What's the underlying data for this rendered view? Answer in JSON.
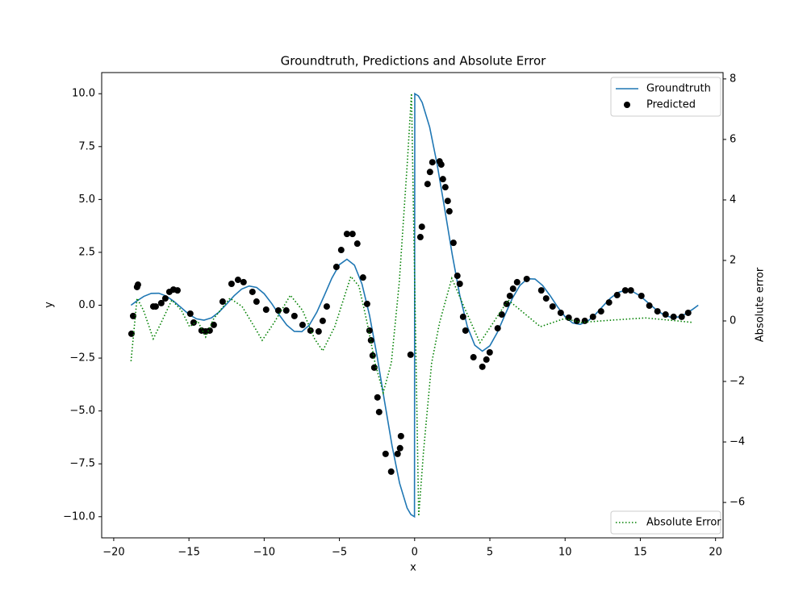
{
  "chart_data": {
    "type": "line",
    "title": "Groundtruth, Predictions and Absolute Error",
    "xlabel": "x",
    "ylabel": "y",
    "y2label": "Absolute error",
    "xlim": [
      -20.8,
      20.5
    ],
    "ylim": [
      -11,
      11
    ],
    "y2lim": [
      -7.17,
      8.21
    ],
    "xticks": [
      {
        "value": -20,
        "label": "−20"
      },
      {
        "value": -15,
        "label": "−15"
      },
      {
        "value": -10,
        "label": "−10"
      },
      {
        "value": -5,
        "label": "−5"
      },
      0,
      5,
      10,
      15,
      20
    ],
    "yticks": [
      {
        "value": -10,
        "label": "−10.0"
      },
      {
        "value": -7.5,
        "label": "−7.5"
      },
      {
        "value": -5,
        "label": "−5.0"
      },
      {
        "value": -2.5,
        "label": "−2.5"
      },
      {
        "value": 0,
        "label": "0.0"
      },
      2.5,
      {
        "value": 5,
        "label": "5.0"
      },
      7.5,
      {
        "value": 10,
        "label": "10.0"
      }
    ],
    "y2ticks": [
      {
        "value": -6,
        "label": "−6"
      },
      {
        "value": -4,
        "label": "−4"
      },
      {
        "value": -2,
        "label": "−2"
      },
      0,
      2,
      4,
      6,
      8
    ],
    "legend": "upper right",
    "y2_legend": "lower right",
    "series": [
      {
        "name": "Groundtruth",
        "type": "line",
        "color": "#1f77b4",
        "x": [
          -18.85,
          -18.5,
          -18,
          -17.5,
          -17,
          -16.5,
          -16,
          -15.5,
          -15,
          -14.5,
          -14,
          -13.5,
          -13,
          -12.5,
          -12,
          -11.5,
          -11,
          -10.5,
          -10,
          -9.5,
          -9,
          -8.5,
          -8,
          -7.5,
          -7,
          -6.5,
          -6,
          -5.5,
          -5,
          -4.5,
          -4,
          -3.5,
          -3,
          -2.5,
          -2,
          -1.5,
          -1,
          -0.5,
          -0.25,
          -0.01,
          0.01,
          0.25,
          0.5,
          1,
          1.5,
          2,
          2.5,
          3,
          3.5,
          4,
          4.5,
          5,
          5.5,
          6,
          6.5,
          7,
          7.5,
          8,
          8.5,
          9,
          9.5,
          10,
          10.5,
          11,
          11.5,
          12,
          12.5,
          13,
          13.5,
          14,
          14.5,
          15,
          15.5,
          16,
          16.5,
          17,
          17.5,
          18,
          18.5,
          18.85
        ],
        "values": [
          0,
          0.183,
          0.417,
          0.56,
          0.566,
          0.432,
          0.18,
          -0.125,
          -0.434,
          -0.645,
          -0.708,
          -0.595,
          -0.323,
          0.053,
          0.447,
          0.761,
          0.909,
          0.838,
          0.544,
          0.079,
          -0.458,
          -0.939,
          -1.237,
          -1.251,
          -0.939,
          -0.331,
          0.466,
          1.283,
          1.918,
          2.172,
          1.892,
          1.002,
          -0.47,
          -2.394,
          -4.546,
          -6.65,
          -8.415,
          -9.589,
          -9.896,
          -10,
          10,
          9.896,
          9.589,
          8.415,
          6.65,
          4.546,
          2.394,
          0.47,
          -1.002,
          -1.892,
          -2.172,
          -1.918,
          -1.283,
          -0.466,
          0.331,
          0.939,
          1.251,
          1.237,
          0.939,
          0.458,
          -0.079,
          -0.544,
          -0.838,
          -0.909,
          -0.761,
          -0.447,
          -0.053,
          0.323,
          0.595,
          0.708,
          0.645,
          0.434,
          0.125,
          -0.18,
          -0.432,
          -0.566,
          -0.56,
          -0.417,
          -0.183,
          0
        ]
      },
      {
        "name": "Predicted",
        "type": "scatter",
        "color": "#000000",
        "x": [
          -18.82,
          -18.71,
          -18.45,
          -18.39,
          -17.37,
          -17.21,
          -16.84,
          -16.57,
          -16.3,
          -16.03,
          -15.76,
          -14.91,
          -14.69,
          -14.16,
          -13.89,
          -13.62,
          -13.35,
          -12.76,
          -12.17,
          -11.74,
          -11.37,
          -10.78,
          -10.51,
          -9.87,
          -9.06,
          -8.53,
          -7.99,
          -7.45,
          -6.92,
          -6.38,
          -6.11,
          -5.84,
          -5.2,
          -4.88,
          -4.5,
          -4.13,
          -3.81,
          -3.43,
          -3.16,
          -3,
          -2.9,
          -2.79,
          -2.68,
          -2.47,
          -2.36,
          -1.93,
          -1.56,
          -1.13,
          -0.97,
          -0.91,
          -0.27,
          0.38,
          0.48,
          0.86,
          1.02,
          1.18,
          1.66,
          1.77,
          1.88,
          2.04,
          2.2,
          2.31,
          2.58,
          2.84,
          3,
          3.22,
          3.38,
          3.91,
          4.5,
          4.77,
          4.99,
          5.52,
          5.79,
          6.11,
          6.33,
          6.54,
          6.81,
          7.45,
          8.42,
          8.74,
          9.17,
          9.71,
          10.24,
          10.78,
          11.31,
          11.85,
          12.39,
          12.92,
          13.46,
          14,
          14.37,
          15.07,
          15.6,
          16.14,
          16.68,
          17.21,
          17.75,
          18.18
        ],
        "values": [
          -1.35,
          -0.51,
          0.86,
          0.97,
          -0.06,
          -0.06,
          0.1,
          0.32,
          0.63,
          0.74,
          0.7,
          -0.4,
          -0.82,
          -1.2,
          -1.24,
          -1.2,
          -0.93,
          0.17,
          1.01,
          1.2,
          1.09,
          0.63,
          0.17,
          -0.21,
          -0.25,
          -0.25,
          -0.51,
          -0.93,
          -1.2,
          -1.24,
          -0.74,
          -0.06,
          1.81,
          2.61,
          3.37,
          3.37,
          2.91,
          1.31,
          0.06,
          -1.2,
          -1.66,
          -2.38,
          -2.95,
          -4.36,
          -5.05,
          -7.03,
          -7.87,
          -7.03,
          -6.76,
          -6.19,
          -2.34,
          3.22,
          3.71,
          5.73,
          6.3,
          6.76,
          6.8,
          6.65,
          5.96,
          5.58,
          4.93,
          4.44,
          2.95,
          1.39,
          1.01,
          -0.55,
          -1.2,
          -2.46,
          -2.91,
          -2.57,
          -2.23,
          -1.09,
          -0.44,
          0.06,
          0.44,
          0.78,
          1.09,
          1.24,
          0.7,
          0.32,
          -0.06,
          -0.36,
          -0.59,
          -0.74,
          -0.74,
          -0.55,
          -0.29,
          0.13,
          0.48,
          0.7,
          0.7,
          0.44,
          -0.02,
          -0.29,
          -0.44,
          -0.55,
          -0.55,
          -0.36
        ]
      },
      {
        "name": "Absolute Error",
        "type": "line",
        "dotted": true,
        "axis": "y2",
        "color": "#008000",
        "x": [
          -18.85,
          -18.45,
          -18.02,
          -17.37,
          -16.84,
          -16.14,
          -15.5,
          -14.96,
          -14.42,
          -13.89,
          -13.35,
          -12.28,
          -11.47,
          -10.66,
          -10.13,
          -9.33,
          -8.26,
          -7.45,
          -6.65,
          -6.11,
          -5.31,
          -4.24,
          -3.7,
          -3.16,
          -2.63,
          -2.09,
          -1.55,
          -1.02,
          -0.48,
          -0.21,
          0.27,
          0.59,
          1.13,
          1.66,
          2.47,
          3.27,
          4.34,
          6.22,
          8.36,
          9.97,
          11.05,
          13.19,
          15.34,
          17.48,
          18.5
        ],
        "values": [
          -1.33,
          0.75,
          0.35,
          -0.59,
          -0.05,
          0.69,
          0.35,
          -0.19,
          0,
          -0.53,
          0.08,
          0.75,
          0.48,
          -0.19,
          -0.64,
          -0.05,
          0.85,
          0.35,
          -0.59,
          -0.99,
          -0.19,
          1.47,
          1.15,
          -0.05,
          -1.39,
          -2.37,
          -1.39,
          1.28,
          5.28,
          7.52,
          -6.45,
          -4.32,
          -1.39,
          -0.05,
          1.41,
          0.48,
          -0.72,
          0.69,
          -0.19,
          0.08,
          -0.05,
          0.03,
          0.1,
          0,
          -0.05
        ]
      }
    ]
  }
}
